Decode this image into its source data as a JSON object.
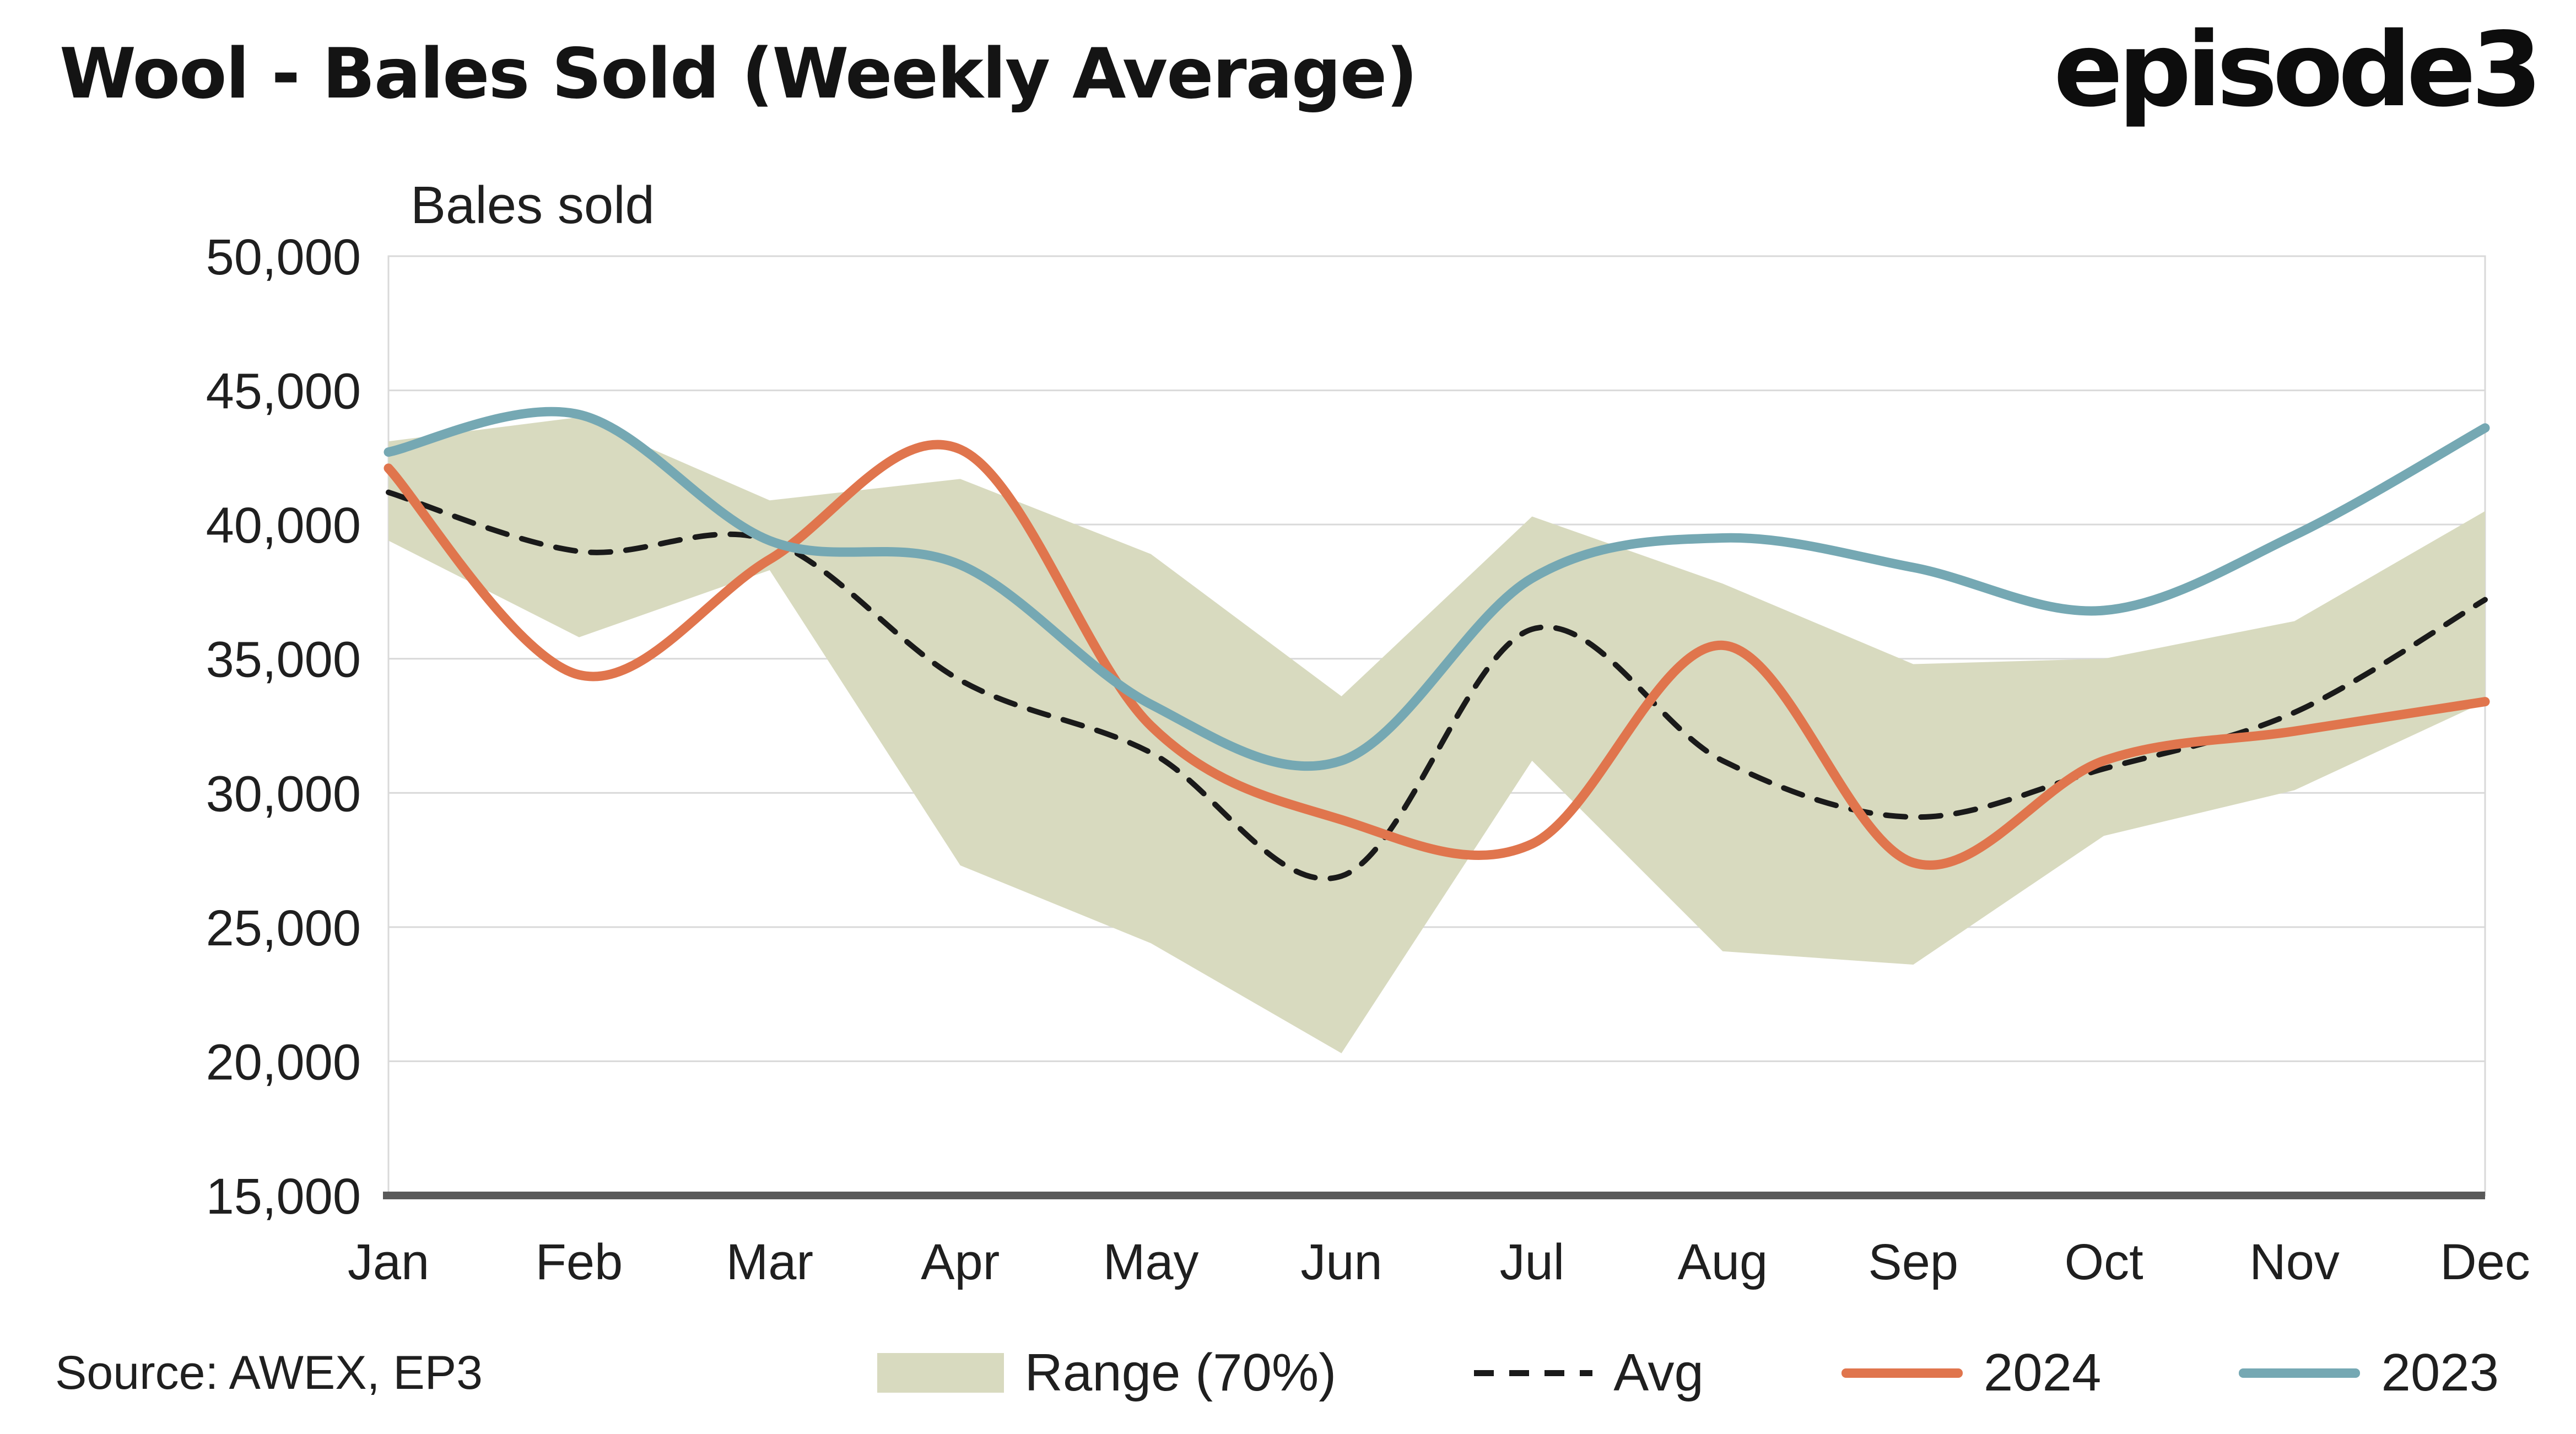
{
  "header": {
    "title": "Wool - Bales Sold (Weekly Average)",
    "logo": "episode3"
  },
  "footer": {
    "source": "Source: AWEX, EP3"
  },
  "legend": {
    "items": [
      {
        "label": "Range (70%)",
        "type": "band",
        "color": "#d8dabf"
      },
      {
        "label": "Avg",
        "type": "dashed-line",
        "color": "#1a1a1a"
      },
      {
        "label": "2024",
        "type": "line",
        "color": "#e0754d"
      },
      {
        "label": "2023",
        "type": "line",
        "color": "#75a8b3"
      }
    ]
  },
  "chart_data": {
    "type": "line",
    "title": "Wool - Bales Sold (Weekly Average)",
    "xlabel": "",
    "ylabel": "Bales sold",
    "categories": [
      "Jan",
      "Feb",
      "Mar",
      "Apr",
      "May",
      "Jun",
      "Jul",
      "Aug",
      "Sep",
      "Oct",
      "Nov",
      "Dec"
    ],
    "ylim": [
      15000,
      50000
    ],
    "yticks": [
      15000,
      20000,
      25000,
      30000,
      35000,
      40000,
      45000,
      50000
    ],
    "ytick_labels": [
      "15,000",
      "20,000",
      "25,000",
      "30,000",
      "35,000",
      "40,000",
      "45,000",
      "50,000"
    ],
    "grid": "horizontal",
    "legend_position": "bottom",
    "band": {
      "name": "Range (70%)",
      "color": "#d8dabf",
      "upper": [
        43100,
        44000,
        40900,
        41700,
        38900,
        33600,
        40300,
        37800,
        34800,
        35000,
        36400,
        40500
      ],
      "lower": [
        39400,
        35800,
        38300,
        27300,
        24400,
        20300,
        31200,
        24100,
        23600,
        28400,
        30100,
        33400
      ]
    },
    "series": [
      {
        "name": "Avg",
        "color": "#1a1a1a",
        "dash": true,
        "values": [
          41200,
          39000,
          39400,
          34200,
          31500,
          26900,
          36100,
          31200,
          29100,
          30900,
          33000,
          37200
        ]
      },
      {
        "name": "2024",
        "color": "#e0754d",
        "dash": false,
        "values": [
          42100,
          34400,
          38700,
          42800,
          32500,
          29000,
          28100,
          35500,
          27400,
          31200,
          32300,
          33400
        ]
      },
      {
        "name": "2023",
        "color": "#75a8b3",
        "dash": false,
        "values": [
          42700,
          44100,
          39400,
          38500,
          33300,
          31200,
          38000,
          39500,
          38400,
          36800,
          39600,
          43600
        ]
      }
    ],
    "colors": {
      "grid": "#d9d9d9",
      "axis": "#595959",
      "text": "#1f1f1f"
    }
  }
}
